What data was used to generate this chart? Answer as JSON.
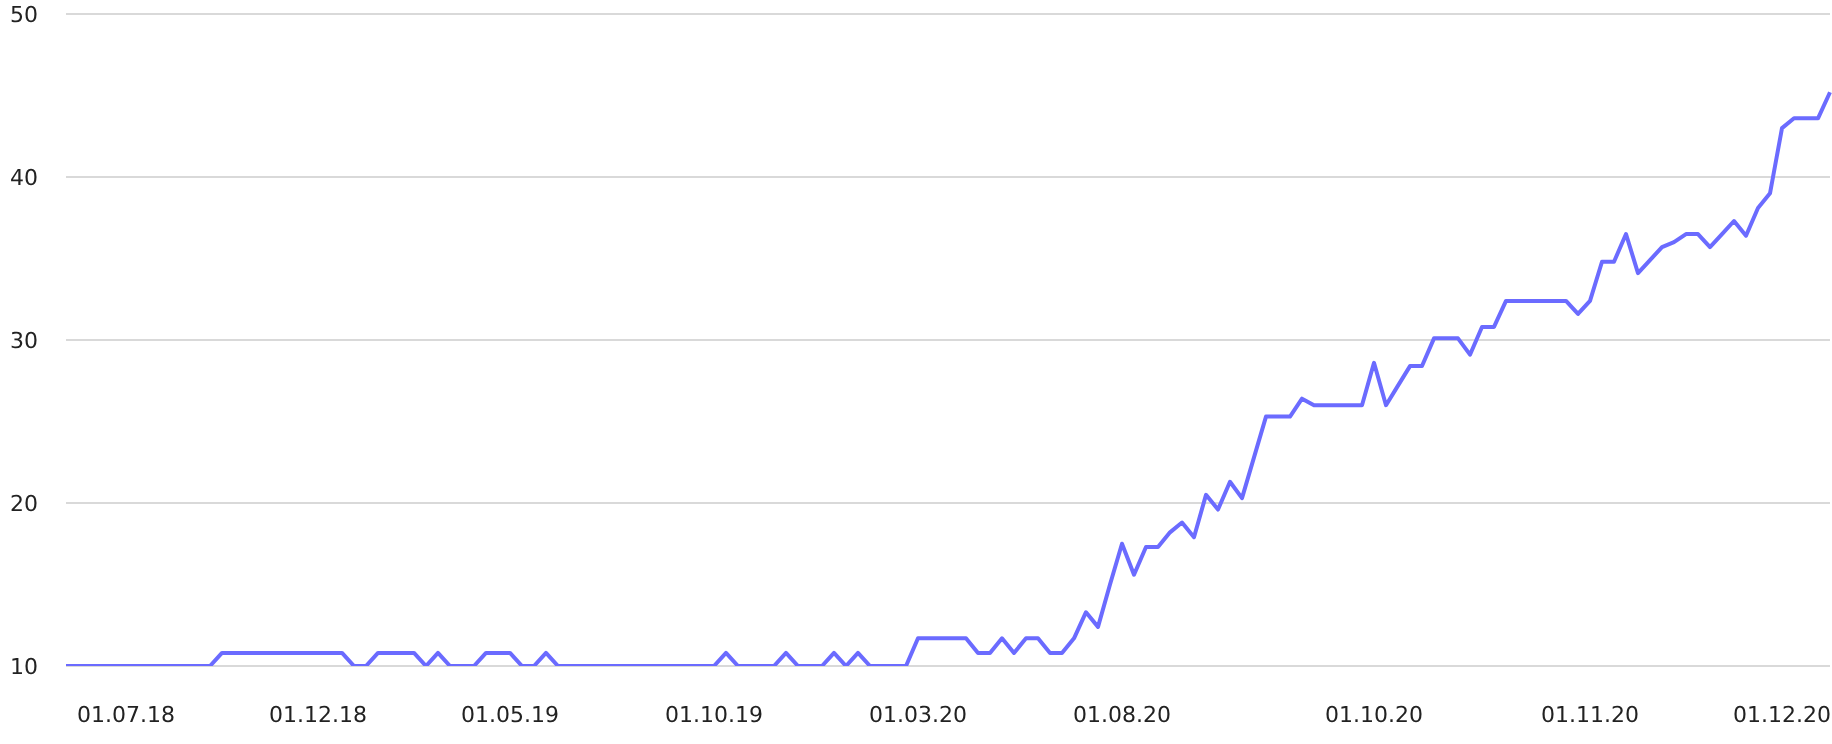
{
  "chart_data": {
    "type": "line",
    "categories": [
      null,
      null,
      null,
      null,
      null,
      "01.07.18",
      null,
      null,
      null,
      null,
      null,
      null,
      null,
      null,
      null,
      null,
      null,
      null,
      null,
      null,
      null,
      "01.12.18",
      null,
      null,
      null,
      null,
      null,
      null,
      null,
      null,
      null,
      null,
      null,
      null,
      null,
      null,
      null,
      "01.05.19",
      null,
      null,
      null,
      null,
      null,
      null,
      null,
      null,
      null,
      null,
      null,
      null,
      null,
      null,
      null,
      null,
      "01.10.19",
      null,
      null,
      null,
      null,
      null,
      null,
      null,
      null,
      null,
      null,
      null,
      null,
      null,
      null,
      null,
      null,
      "01.03.20",
      null,
      null,
      null,
      null,
      null,
      null,
      null,
      null,
      null,
      null,
      null,
      null,
      null,
      null,
      null,
      null,
      "01.08.20",
      null,
      null,
      null,
      null,
      null,
      null,
      null,
      null,
      null,
      null,
      null,
      null,
      null,
      null,
      null,
      null,
      null,
      null,
      null,
      null,
      "01.10.20",
      null,
      null,
      null,
      null,
      null,
      null,
      null,
      null,
      null,
      null,
      null,
      null,
      null,
      null,
      null,
      null,
      null,
      "01.11.20",
      null,
      null,
      null,
      null,
      null,
      null,
      null,
      null,
      null,
      null,
      null,
      null,
      null,
      null,
      null,
      "01.12.20",
      null,
      null,
      null,
      null
    ],
    "series": [
      {
        "color": "#6b6bff",
        "values": [
          10,
          10,
          10,
          10,
          10,
          10,
          10,
          10,
          10,
          10,
          10,
          10,
          10,
          10.8,
          10.8,
          10.8,
          10.8,
          10.8,
          10.8,
          10.8,
          10.8,
          10.8,
          10.8,
          10.8,
          10,
          10,
          10.8,
          10.8,
          10.8,
          10.8,
          10,
          10.8,
          10,
          10,
          10,
          10.8,
          10.8,
          10.8,
          10,
          10,
          10.8,
          10,
          10,
          10,
          10,
          10,
          10,
          10,
          10,
          10,
          10,
          10,
          10,
          10,
          10,
          10.8,
          10,
          10,
          10,
          10,
          10.8,
          10,
          10,
          10,
          10.8,
          10,
          10.8,
          10,
          10,
          10,
          10,
          11.7,
          11.7,
          11.7,
          11.7,
          11.7,
          10.8,
          10.8,
          11.7,
          10.8,
          11.7,
          11.7,
          10.8,
          10.8,
          11.7,
          13.3,
          12.4,
          15,
          17.5,
          15.6,
          17.3,
          17.3,
          18.2,
          18.8,
          17.9,
          20.5,
          19.6,
          21.3,
          20.3,
          22.8,
          25.3,
          25.3,
          25.3,
          26.4,
          26,
          26,
          26,
          26,
          26,
          28.6,
          26,
          27.2,
          28.4,
          28.4,
          30.1,
          30.1,
          30.1,
          29.1,
          30.8,
          30.8,
          32.4,
          32.4,
          32.4,
          32.4,
          32.4,
          32.4,
          31.6,
          32.4,
          34.8,
          34.8,
          36.5,
          34.1,
          34.9,
          35.7,
          36,
          36.5,
          36.5,
          35.7,
          36.5,
          37.3,
          36.4,
          38.1,
          39,
          43,
          43.6,
          43.6,
          43.6,
          45.2
        ]
      }
    ],
    "ylim": [
      10,
      50
    ],
    "yticks": [
      10,
      20,
      30,
      40,
      50
    ],
    "grid": "y",
    "legend": false,
    "marker": "none",
    "line_style": "solid"
  }
}
